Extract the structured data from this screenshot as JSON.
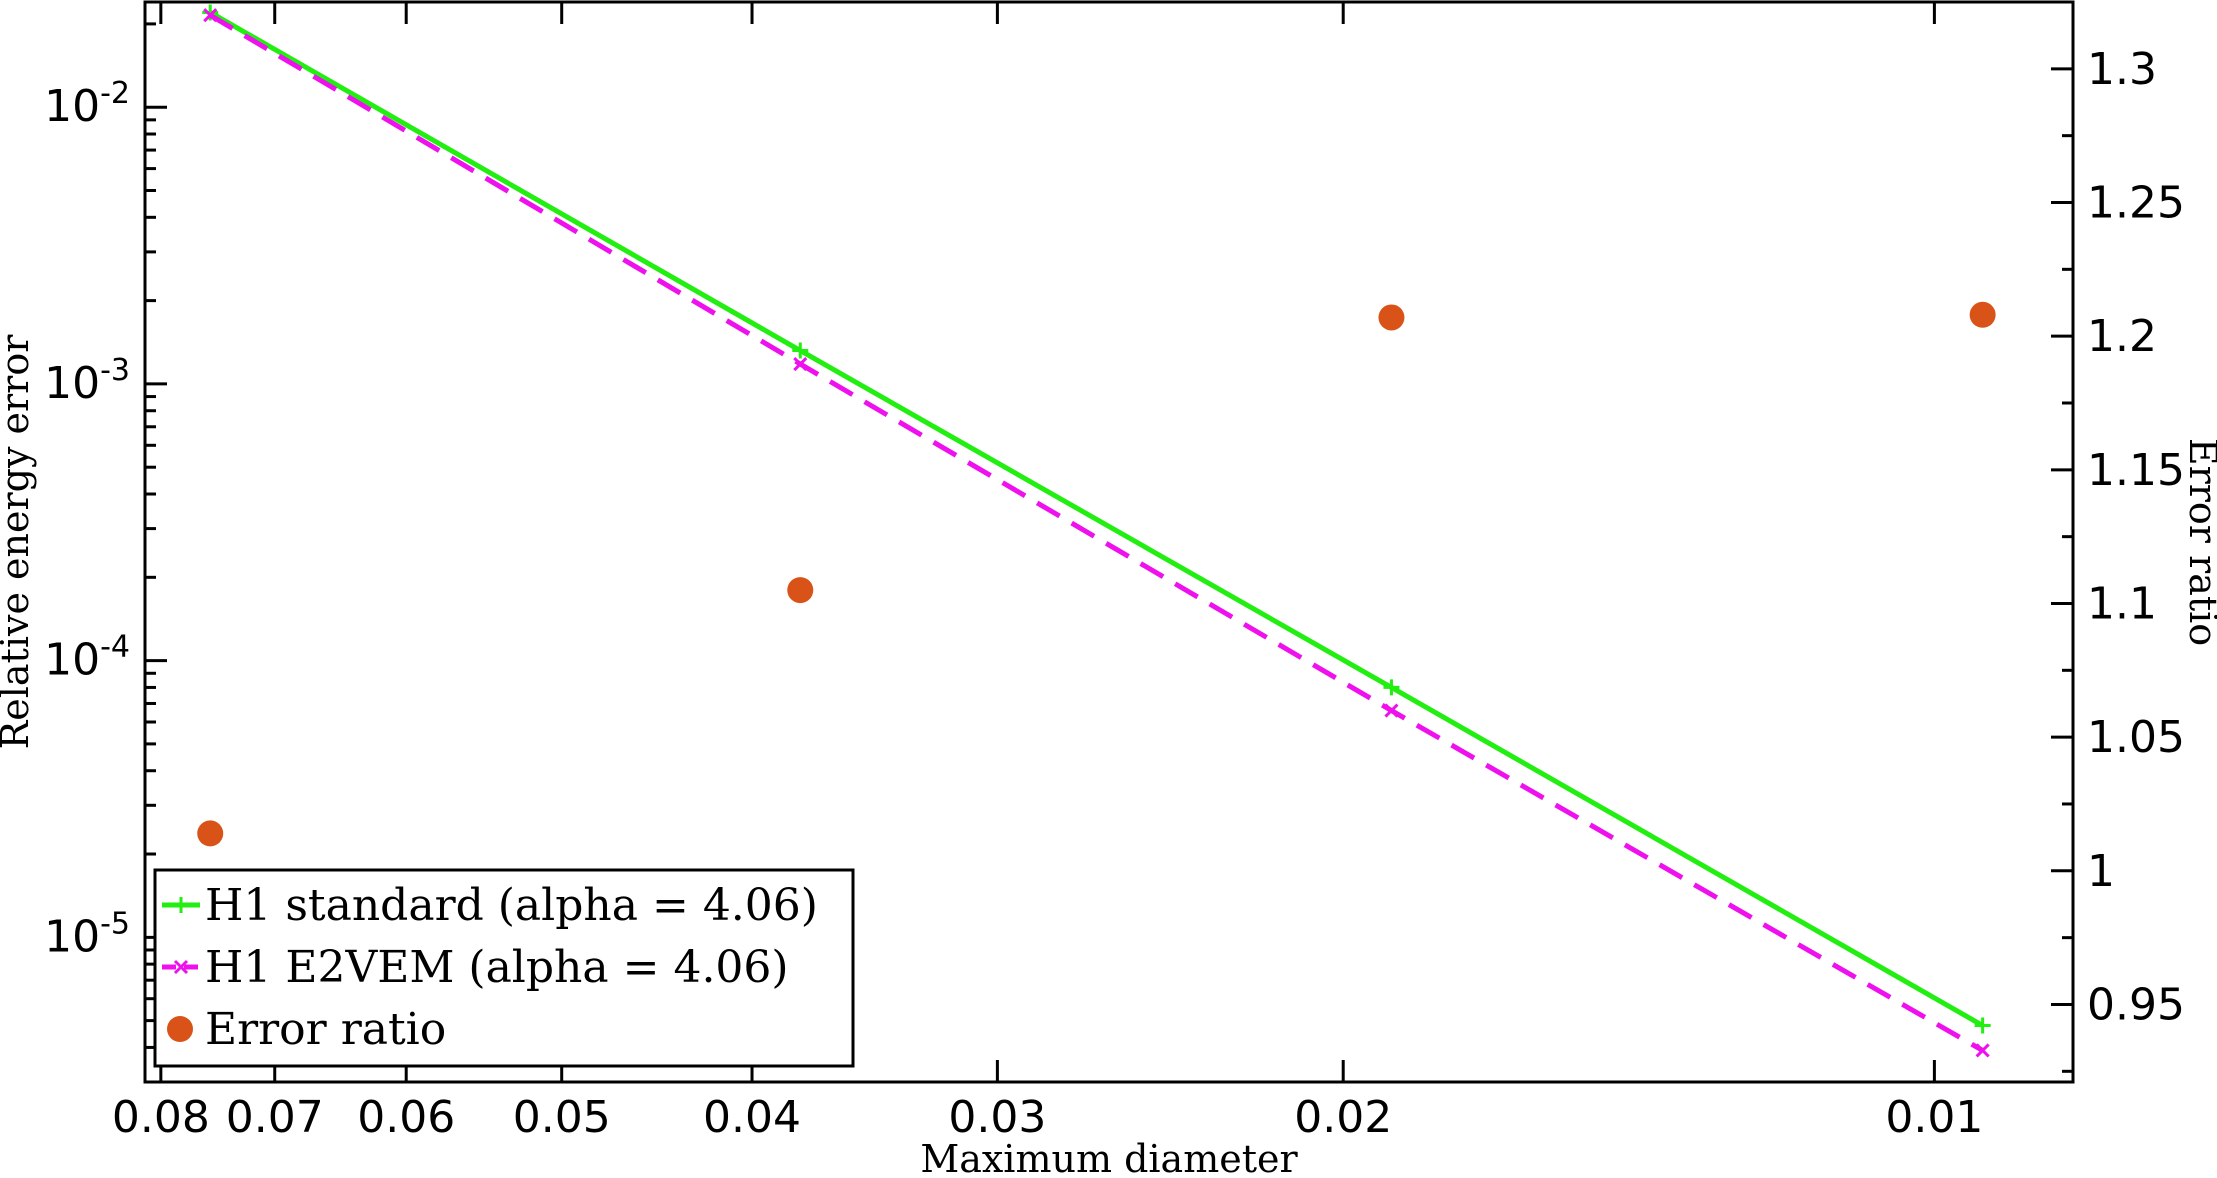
{
  "chart_data": {
    "type": "line",
    "xlabel": "Maximum diameter",
    "ylabel": "Relative energy error",
    "ylabel_right": "Error ratio",
    "x_scale": "log",
    "x_reversed": true,
    "xlim": [
      0.0815,
      0.0085
    ],
    "y_scale": "log",
    "ylim": [
      3e-06,
      0.024
    ],
    "y2lim": [
      0.921,
      1.325
    ],
    "x_ticks": [
      0.08,
      0.07,
      0.06,
      0.05,
      0.04,
      0.03,
      0.02,
      0.01
    ],
    "x_tick_labels": [
      "0.08",
      "0.07",
      "0.06",
      "0.05",
      "0.04",
      "0.03",
      "0.02",
      "0.01"
    ],
    "y_ticks": [
      {
        "value": 1e-05,
        "base": "10",
        "exp": "-5"
      },
      {
        "value": 0.0001,
        "base": "10",
        "exp": "-4"
      },
      {
        "value": 0.001,
        "base": "10",
        "exp": "-3"
      },
      {
        "value": 0.01,
        "base": "10",
        "exp": "-2"
      }
    ],
    "y2_ticks": [
      0.95,
      1,
      1.05,
      1.1,
      1.15,
      1.2,
      1.25,
      1.3
    ],
    "y2_tick_labels": [
      "0.95",
      "1",
      "1.05",
      "1.1",
      "1.15",
      "1.2",
      "1.25",
      "1.3"
    ],
    "x": [
      0.0755,
      0.0378,
      0.0189,
      0.00945
    ],
    "series": [
      {
        "name": "H1 standard (alpha = 4.06)",
        "axis": "left",
        "style": "solid",
        "marker": "plus",
        "color": "#22ee11",
        "values": [
          0.022,
          0.00132,
          8e-05,
          4.8e-06
        ]
      },
      {
        "name": "H1 E2VEM (alpha = 4.06)",
        "axis": "left",
        "style": "dashed",
        "marker": "x",
        "color": "#ee11ee",
        "values": [
          0.0215,
          0.00118,
          6.6e-05,
          3.9e-06
        ]
      },
      {
        "name": "Error ratio",
        "axis": "right",
        "style": "points",
        "marker": "circle",
        "color": "#d95319",
        "values": [
          1.014,
          1.105,
          1.207,
          1.208
        ]
      }
    ],
    "legend_position": "bottom-left",
    "grid": false
  }
}
